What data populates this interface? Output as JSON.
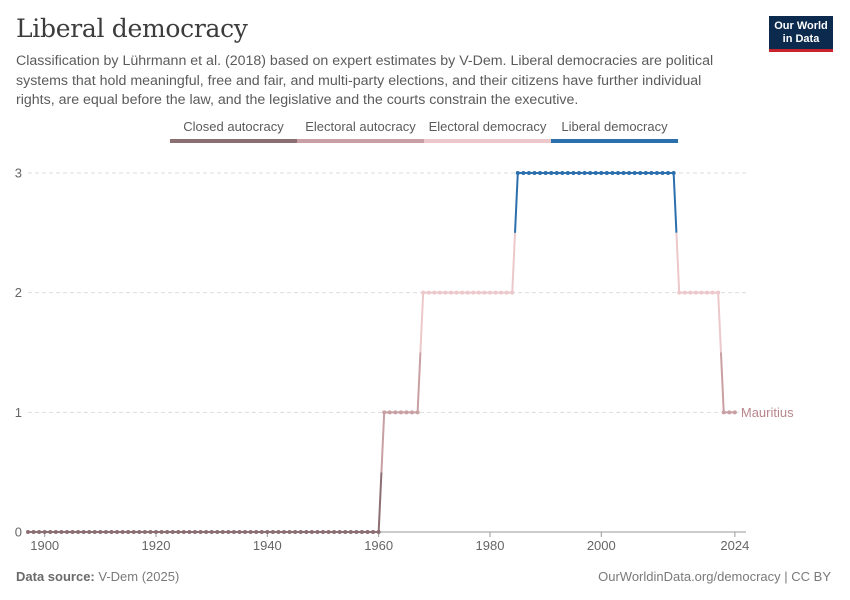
{
  "header": {
    "title": "Liberal democracy",
    "subtitle": "Classification by Lührmann et al. (2018) based on expert estimates by V-Dem. Liberal democracies are political systems that hold meaningful, free and fair, and multi-party elections, and their citizens have further individual rights, are equal before the law, and the legislative and the courts constrain the executive.",
    "logo_line1": "Our World",
    "logo_line2": "in Data"
  },
  "legend": [
    {
      "label": "Closed autocracy",
      "color": "#8b6f73"
    },
    {
      "label": "Electoral autocracy",
      "color": "#c8a0a4"
    },
    {
      "label": "Electoral democracy",
      "color": "#ecc8cb"
    },
    {
      "label": "Liberal democracy",
      "color": "#2c6fad"
    }
  ],
  "footer": {
    "source_label": "Data source:",
    "source_value": "V-Dem (2025)",
    "url": "OurWorldinData.org/democracy | CC BY"
  },
  "chart_data": {
    "type": "line",
    "title": "Liberal democracy",
    "xlabel": "",
    "ylabel": "",
    "xlim": [
      1897,
      2026
    ],
    "ylim": [
      0,
      3
    ],
    "x_ticks": [
      1900,
      1920,
      1940,
      1960,
      1980,
      2000,
      2024
    ],
    "y_ticks": [
      0,
      1,
      2,
      3
    ],
    "grid": "horizontal dashed",
    "series": [
      {
        "name": "Mauritius",
        "segments": [
          {
            "start": 1897,
            "end": 1960,
            "value": 0
          },
          {
            "start": 1961,
            "end": 1967,
            "value": 1
          },
          {
            "start": 1968,
            "end": 1984,
            "value": 2
          },
          {
            "start": 1985,
            "end": 2013,
            "value": 3
          },
          {
            "start": 2014,
            "end": 2021,
            "value": 2
          },
          {
            "start": 2022,
            "end": 2024,
            "value": 1
          }
        ]
      }
    ],
    "category_colors": [
      "#8b6f73",
      "#c8a0a4",
      "#ecc8cb",
      "#2c6fad"
    ],
    "end_label_color": "#b8868b"
  }
}
